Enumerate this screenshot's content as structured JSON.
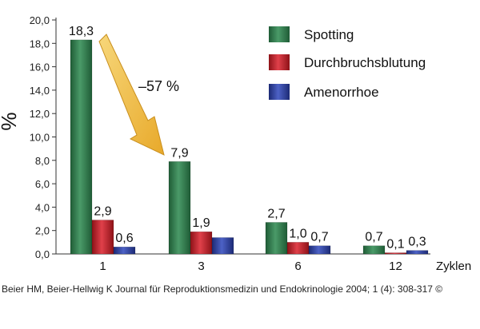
{
  "chart_data": {
    "type": "bar",
    "ylabel": "%",
    "xlabel": "Zyklen",
    "ylim": [
      0,
      20
    ],
    "yticks": [
      "0,0",
      "2,0",
      "4,0",
      "6,0",
      "8,0",
      "10,0",
      "12,0",
      "14,0",
      "16,0",
      "18,0",
      "20,0"
    ],
    "categories": [
      "1",
      "3",
      "6",
      "12"
    ],
    "series": [
      {
        "name": "Spotting",
        "color": "#2f7d4e",
        "values": [
          18.3,
          7.9,
          2.7,
          0.7
        ],
        "labels": [
          "18,3",
          "7,9",
          "2,7",
          "0,7"
        ]
      },
      {
        "name": "Durchbruchsblutung",
        "color": "#c8202a",
        "values": [
          2.9,
          1.9,
          1.0,
          0.1
        ],
        "labels": [
          "2,9",
          "1,9",
          "1,0",
          "0,1"
        ]
      },
      {
        "name": "Amenorrhoe",
        "color": "#2e3f9e",
        "values": [
          0.6,
          1.4,
          0.7,
          0.3
        ],
        "labels": [
          "0,6",
          "",
          "0,7",
          "0,3"
        ]
      }
    ],
    "annotation": {
      "text": "–57 %",
      "arrow_color": "#f2c24a",
      "from_category": "1",
      "to_category": "3"
    },
    "grid": false,
    "legend_position": "top-right"
  },
  "citation": "Beier HM, Beier-Hellwig K Journal für Reproduktionsmedizin und Endokrinologie 2004; 1 (4): 308-317 ©"
}
